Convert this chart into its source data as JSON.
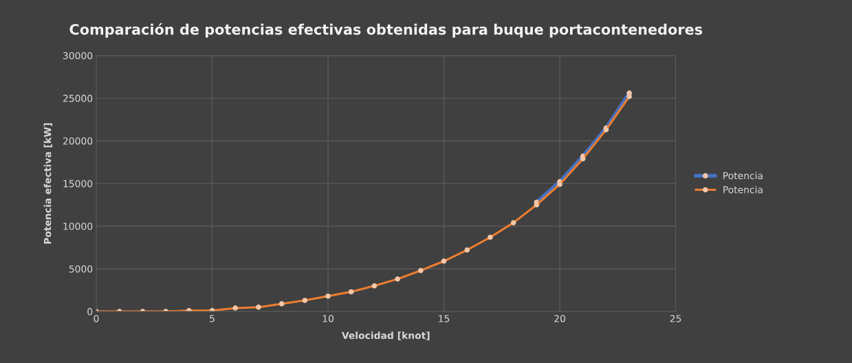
{
  "chart_data": {
    "type": "line",
    "title": "Comparación de potencias efectivas obtenidas para buque portacontenedores",
    "xlabel": "Velocidad [knot]",
    "ylabel": "Potencia efectiva [kW]",
    "x": [
      0,
      1,
      2,
      3,
      4,
      5,
      6,
      7,
      8,
      9,
      10,
      11,
      12,
      13,
      14,
      15,
      16,
      17,
      18,
      19,
      20,
      21,
      22,
      23
    ],
    "series": [
      {
        "name": "Potencia",
        "color": "#4472c4",
        "values": [
          null,
          null,
          null,
          null,
          null,
          null,
          null,
          null,
          null,
          null,
          null,
          null,
          null,
          null,
          null,
          null,
          null,
          null,
          null,
          12800,
          15200,
          18200,
          21500,
          25600
        ]
      },
      {
        "name": "Potencia",
        "color": "#ed7d31",
        "values": [
          0,
          0,
          0,
          0,
          100,
          100,
          400,
          500,
          900,
          1300,
          1800,
          2300,
          3000,
          3800,
          4800,
          5900,
          7200,
          8700,
          10400,
          12500,
          14900,
          17900,
          21300,
          25200
        ]
      }
    ],
    "xlim": [
      0,
      25
    ],
    "xticks": [
      0,
      5,
      10,
      15,
      20,
      25
    ],
    "ylim": [
      0,
      30000
    ],
    "yticks": [
      0,
      5000,
      10000,
      15000,
      20000,
      25000,
      30000
    ],
    "grid": true,
    "legend": "right",
    "marker": "circle",
    "line_style": "solid"
  }
}
